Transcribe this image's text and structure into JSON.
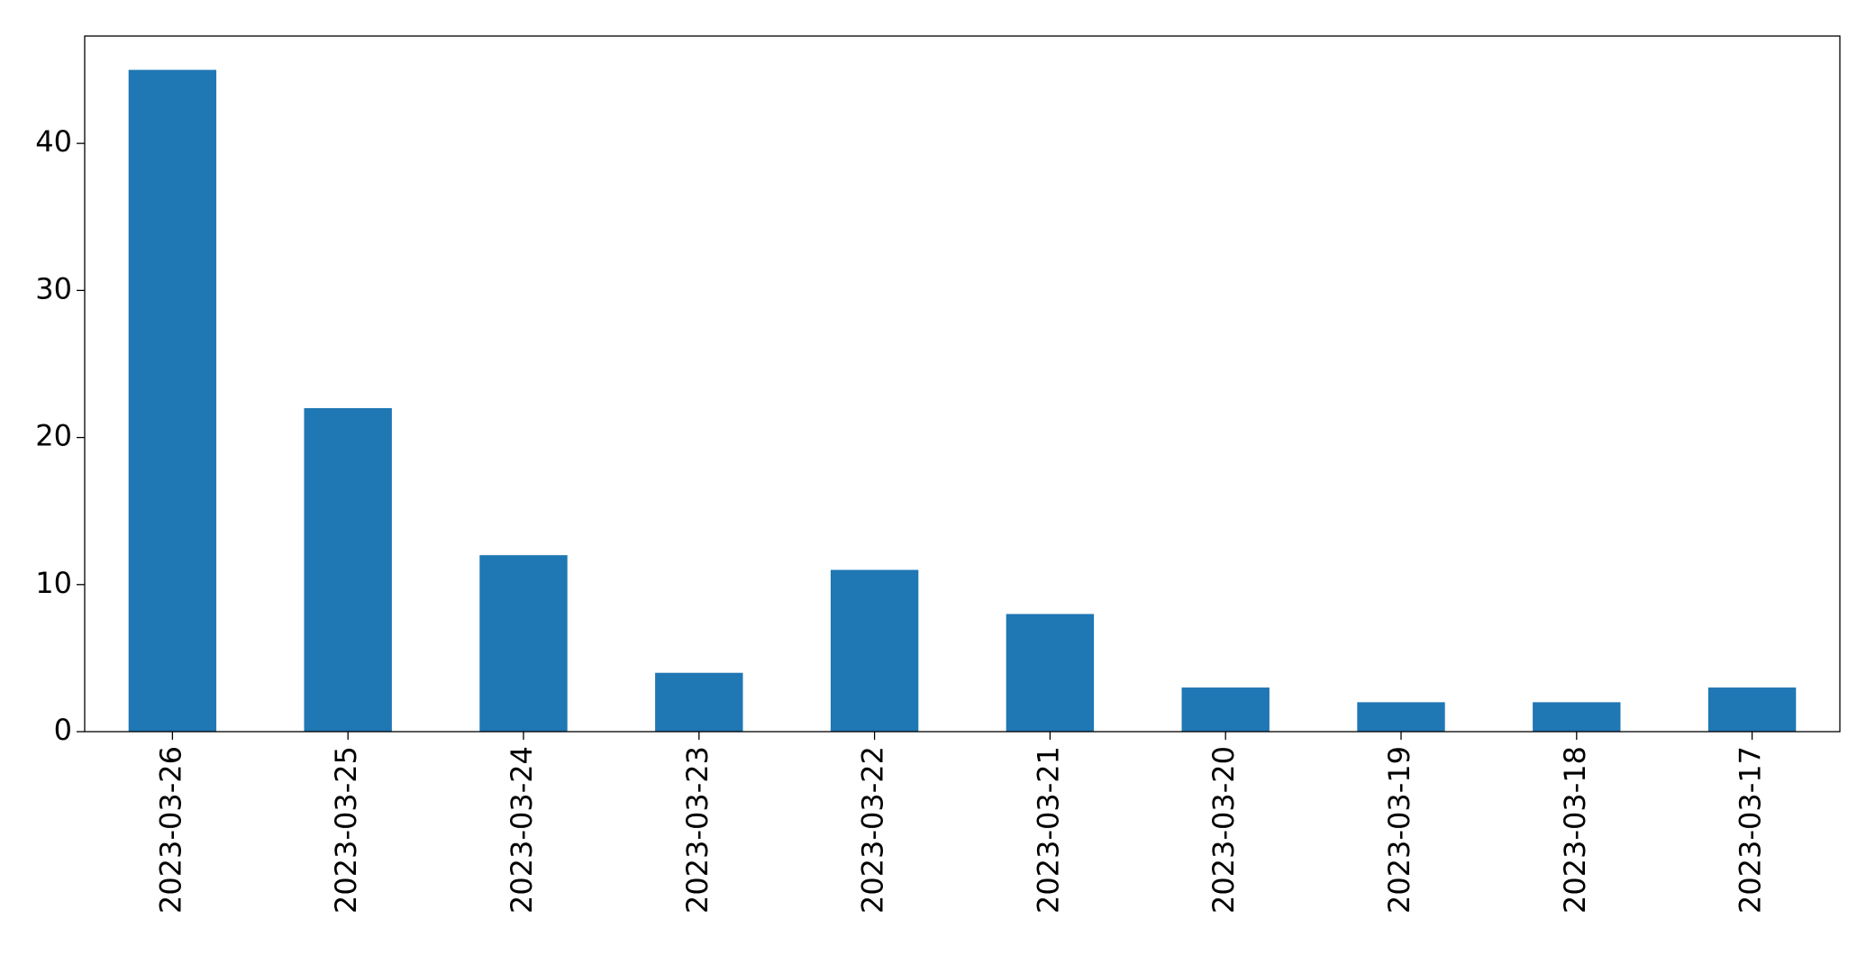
{
  "chart_data": {
    "type": "bar",
    "categories": [
      "2023-03-26",
      "2023-03-25",
      "2023-03-24",
      "2023-03-23",
      "2023-03-22",
      "2023-03-21",
      "2023-03-20",
      "2023-03-19",
      "2023-03-18",
      "2023-03-17"
    ],
    "values": [
      45,
      22,
      12,
      4,
      11,
      8,
      3,
      2,
      2,
      3
    ],
    "color": "#1f77b4",
    "ylim": [
      0,
      47.3
    ],
    "yticks": [
      0,
      10,
      20,
      30,
      40
    ],
    "grid": false
  }
}
